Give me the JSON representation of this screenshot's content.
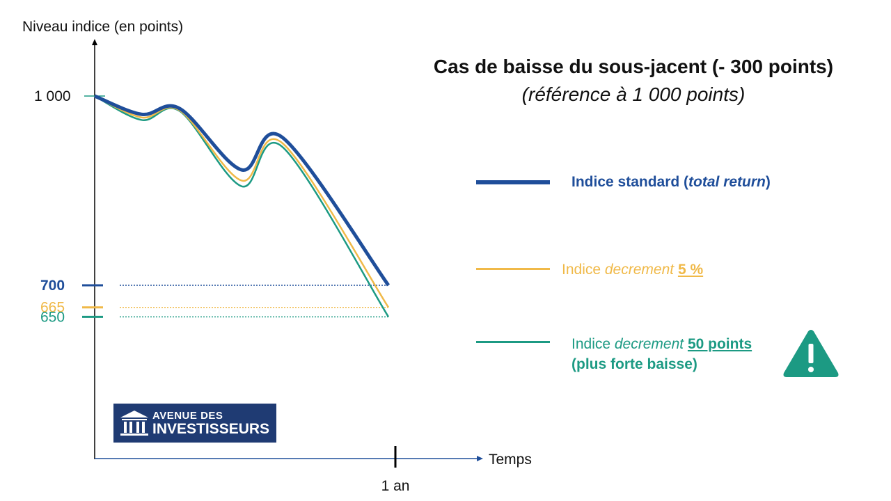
{
  "chart_data": {
    "type": "line",
    "ylabel": "Niveau indice (en points)",
    "xlabel": "Temps",
    "x_tick": "1 an",
    "title": "Cas de baisse du sous-jacent (- 300 points)",
    "subtitle": "(référence à 1 000 points)",
    "y_ticks": [
      {
        "value": 1000,
        "label": "1 000",
        "color": "#111111"
      },
      {
        "value": 700,
        "label": "700",
        "color": "#1f4e9a"
      },
      {
        "value": 665,
        "label": "665",
        "color": "#f0b948"
      },
      {
        "value": 650,
        "label": "650",
        "color": "#1c9a83"
      }
    ],
    "series": [
      {
        "key": "standard",
        "color": "#1f4e9a",
        "width": 5,
        "points": [
          [
            0,
            1000
          ],
          [
            0.16,
            971
          ],
          [
            0.29,
            980
          ],
          [
            0.5,
            883
          ],
          [
            0.64,
            934
          ],
          [
            1,
            700
          ]
        ]
      },
      {
        "key": "decrement_pct",
        "color": "#f0b948",
        "width": 2.5,
        "points": [
          [
            0,
            1000
          ],
          [
            0.16,
            966
          ],
          [
            0.29,
            977
          ],
          [
            0.5,
            866
          ],
          [
            0.64,
            925
          ],
          [
            1,
            665
          ]
        ]
      },
      {
        "key": "decrement_pts",
        "color": "#1c9a83",
        "width": 2.5,
        "points": [
          [
            0,
            1000
          ],
          [
            0.16,
            962
          ],
          [
            0.29,
            976
          ],
          [
            0.5,
            857
          ],
          [
            0.64,
            919
          ],
          [
            1,
            650
          ]
        ]
      }
    ]
  },
  "legend": {
    "standard": {
      "pre": "Indice standard (",
      "em": "total return",
      "post": ")",
      "color": "#1f4e9a"
    },
    "decrement_pct": {
      "pre": "Indice ",
      "em": "decrement",
      "value": "5 %",
      "color": "#f0b948"
    },
    "decrement_pts": {
      "pre": "Indice ",
      "em": "decrement",
      "value": "50 points",
      "line2": "(plus forte baisse)",
      "color": "#1c9a83"
    }
  },
  "logo": {
    "line1": "AVENUE DES",
    "line2": "INVESTISSEURS",
    "color": "#1f3b73"
  },
  "warning_icon": "warning-triangle-icon"
}
